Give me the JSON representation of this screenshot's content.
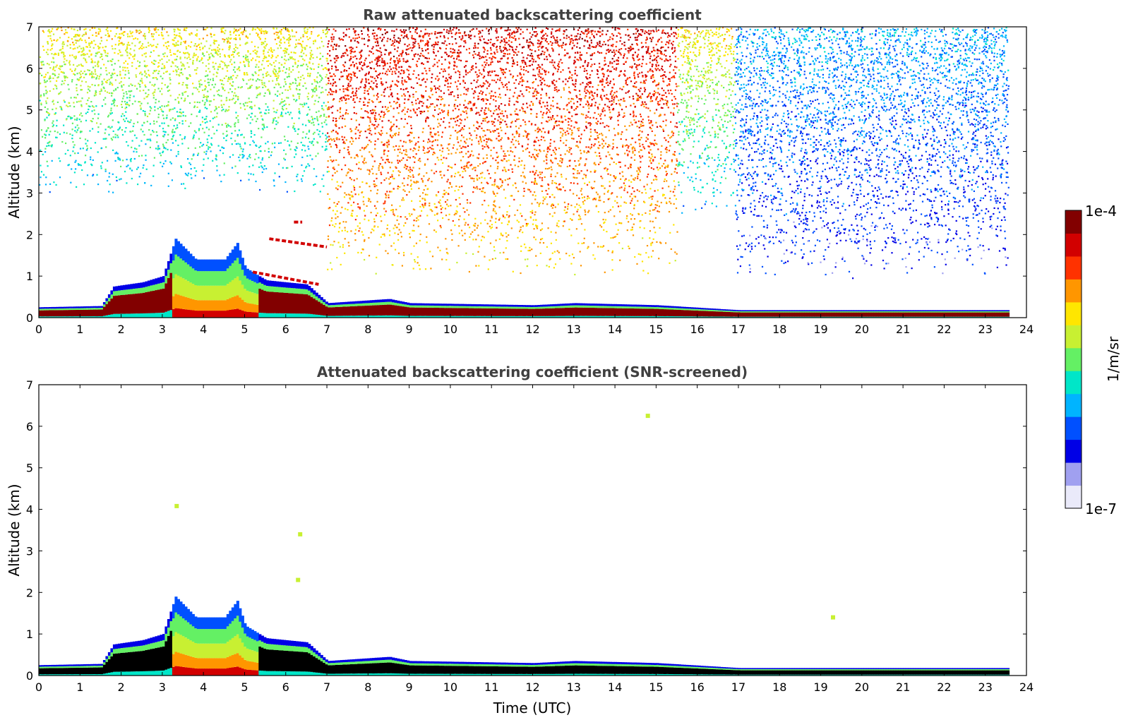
{
  "chart_data": [
    {
      "type": "heatmap",
      "title": "Raw attenuated backscattering coefficient",
      "xlabel": "",
      "ylabel": "Altitude (km)",
      "xlim": [
        0,
        24
      ],
      "ylim": [
        0,
        7
      ],
      "x_ticks": [
        "0",
        "1",
        "2",
        "3",
        "4",
        "5",
        "6",
        "7",
        "8",
        "9",
        "10",
        "11",
        "12",
        "13",
        "14",
        "15",
        "16",
        "17",
        "18",
        "19",
        "20",
        "21",
        "22",
        "23",
        "24"
      ],
      "y_ticks": [
        "0",
        "1",
        "2",
        "3",
        "4",
        "5",
        "6",
        "7"
      ],
      "data_end_time": 23.55,
      "boundary_layer_top_km": [
        [
          0,
          0.25
        ],
        [
          1.5,
          0.28
        ],
        [
          1.8,
          0.75
        ],
        [
          2.5,
          0.85
        ],
        [
          3.0,
          1.0
        ],
        [
          3.3,
          1.9
        ],
        [
          3.8,
          1.4
        ],
        [
          4.5,
          1.4
        ],
        [
          4.8,
          1.8
        ],
        [
          5.0,
          1.2
        ],
        [
          5.5,
          0.9
        ],
        [
          6.5,
          0.8
        ],
        [
          7.0,
          0.35
        ],
        [
          8.5,
          0.45
        ],
        [
          9.0,
          0.35
        ],
        [
          12.0,
          0.3
        ],
        [
          13.0,
          0.35
        ],
        [
          15.0,
          0.3
        ],
        [
          17.0,
          0.18
        ],
        [
          23.55,
          0.18
        ]
      ],
      "lofted_layers_km": [
        {
          "t_start": 5.2,
          "t_end": 6.8,
          "alt_start": 1.1,
          "alt_end": 0.8
        },
        {
          "t_start": 5.6,
          "t_end": 7.0,
          "alt_start": 1.9,
          "alt_end": 1.7
        },
        {
          "t_start": 6.2,
          "t_end": 6.4,
          "alt_start": 2.3,
          "alt_end": 2.3
        }
      ],
      "noise_regions": [
        {
          "t_start": 0,
          "t_end": 7,
          "alt_min_km": 3.0,
          "level": "mid"
        },
        {
          "t_start": 7,
          "t_end": 15.5,
          "alt_min_km": 1.0,
          "level": "high"
        },
        {
          "t_start": 15.5,
          "t_end": 16.9,
          "alt_min_km": 2.5,
          "level": "mid"
        },
        {
          "t_start": 16.9,
          "t_end": 20.3,
          "alt_min_km": 0.9,
          "level": "low"
        },
        {
          "t_start": 20.3,
          "t_end": 23.55,
          "alt_min_km": 1.0,
          "level": "low"
        }
      ]
    },
    {
      "type": "heatmap",
      "title": "Attenuated backscattering coefficient (SNR-screened)",
      "xlabel": "Time (UTC)",
      "ylabel": "Altitude (km)",
      "xlim": [
        0,
        24
      ],
      "ylim": [
        0,
        7
      ],
      "x_ticks": [
        "0",
        "1",
        "2",
        "3",
        "4",
        "5",
        "6",
        "7",
        "8",
        "9",
        "10",
        "11",
        "12",
        "13",
        "14",
        "15",
        "16",
        "17",
        "18",
        "19",
        "20",
        "21",
        "22",
        "23",
        "24"
      ],
      "y_ticks": [
        "0",
        "1",
        "2",
        "3",
        "4",
        "5",
        "6",
        "7"
      ],
      "data_end_time": 23.55,
      "boundary_layer_top_km": [
        [
          0,
          0.25
        ],
        [
          1.5,
          0.28
        ],
        [
          1.8,
          0.75
        ],
        [
          2.5,
          0.85
        ],
        [
          3.0,
          1.0
        ],
        [
          3.3,
          1.9
        ],
        [
          3.8,
          1.4
        ],
        [
          4.5,
          1.4
        ],
        [
          4.8,
          1.8
        ],
        [
          5.0,
          1.2
        ],
        [
          5.5,
          0.9
        ],
        [
          6.5,
          0.8
        ],
        [
          7.0,
          0.35
        ],
        [
          8.5,
          0.45
        ],
        [
          9.0,
          0.35
        ],
        [
          12.0,
          0.3
        ],
        [
          13.0,
          0.35
        ],
        [
          15.0,
          0.3
        ],
        [
          17.0,
          0.18
        ],
        [
          23.55,
          0.18
        ]
      ],
      "isolated_features_km": [
        {
          "t": 3.35,
          "alt": 4.08
        },
        {
          "t": 6.35,
          "alt": 3.4
        },
        {
          "t": 6.3,
          "alt": 2.3
        },
        {
          "t": 14.8,
          "alt": 6.25
        },
        {
          "t": 19.3,
          "alt": 1.4
        }
      ]
    }
  ],
  "colorbar": {
    "label": "1/m/sr",
    "max_label": "1e-4",
    "min_label": "1e-7",
    "colors": [
      "#eaeafa",
      "#a0a0f0",
      "#0000e6",
      "#0050ff",
      "#00b4ff",
      "#00e6c8",
      "#64f064",
      "#c8f032",
      "#ffe600",
      "#ff9600",
      "#ff3200",
      "#d20000",
      "#820000"
    ]
  }
}
